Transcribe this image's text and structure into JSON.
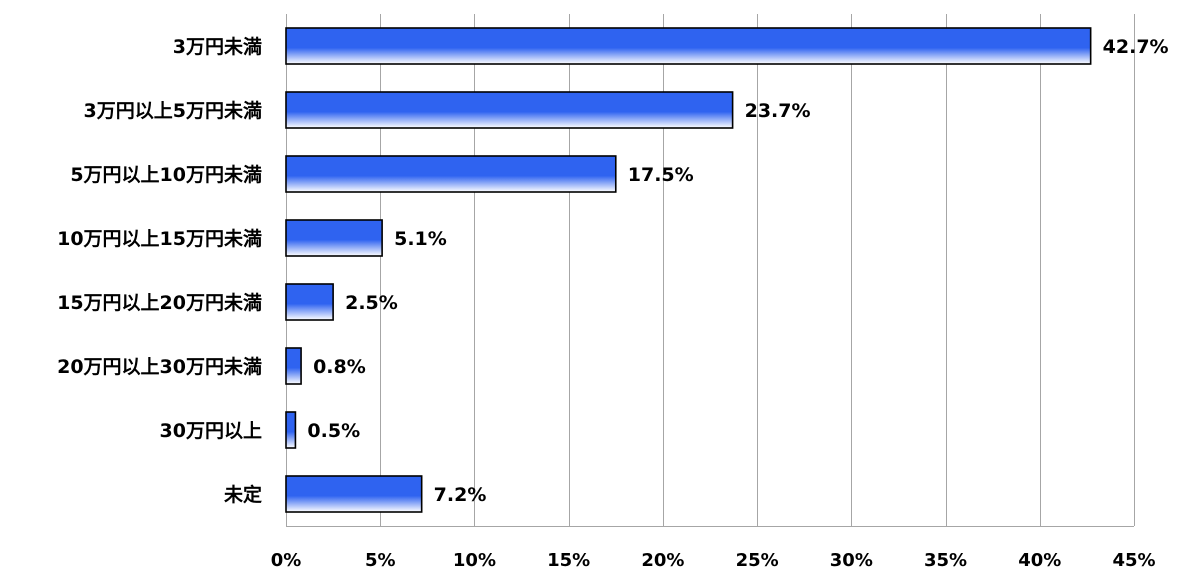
{
  "chart_data": {
    "type": "bar",
    "orientation": "horizontal",
    "categories": [
      "3万円未満",
      "3万円以上5万円未満",
      "5万円以上10万円未満",
      "10万円以上15万円未満",
      "15万円以上20万円未満",
      "20万円以上30万円未満",
      "30万円以上",
      "未定"
    ],
    "values": [
      42.7,
      23.7,
      17.5,
      5.1,
      2.5,
      0.8,
      0.5,
      7.2
    ],
    "value_labels": [
      "42.7%",
      "23.7%",
      "17.5%",
      "5.1%",
      "2.5%",
      "0.8%",
      "0.5%",
      "7.2%"
    ],
    "xlim": [
      0,
      45
    ],
    "xticks": [
      0,
      5,
      10,
      15,
      20,
      25,
      30,
      35,
      40,
      45
    ],
    "xtick_labels": [
      "0%",
      "5%",
      "10%",
      "15%",
      "20%",
      "25%",
      "30%",
      "35%",
      "40%",
      "45%"
    ],
    "grid": "vertical",
    "legend": "none",
    "colors": {
      "bar_dark": "#2f63f0",
      "bar_light": "#ffffff",
      "bar_border": "#000000",
      "grid": "#a6a6a6"
    }
  }
}
